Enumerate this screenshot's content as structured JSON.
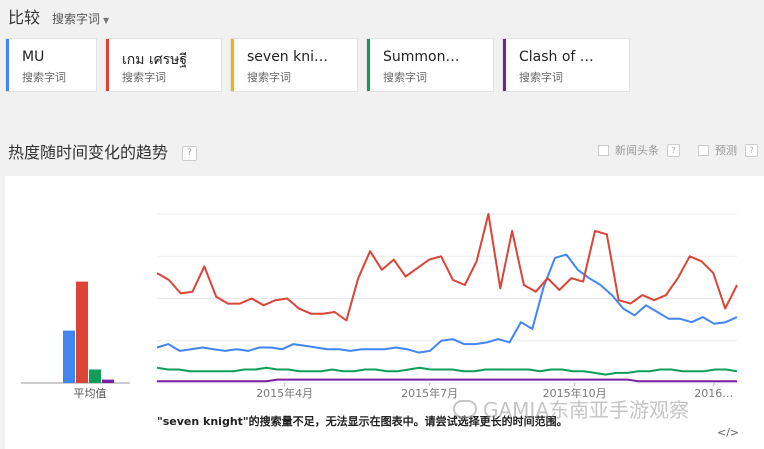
{
  "header": {
    "title": "比较",
    "dropdown_label": "搜索字词"
  },
  "terms": [
    {
      "name": "MU",
      "sub": "搜索字词",
      "color": "#4285f4"
    },
    {
      "name": "เกม เศรษฐี",
      "sub": "搜索字词",
      "color": "#db4437"
    },
    {
      "name": "seven kni…",
      "sub": "搜索字词",
      "color": "#f4b400"
    },
    {
      "name": "Summon…",
      "sub": "搜索字词",
      "color": "#0f9d58"
    },
    {
      "name": "Clash of …",
      "sub": "搜索字词",
      "color": "#7b1fa2"
    }
  ],
  "section": {
    "title": "热度随时间变化的趋势",
    "help": "?",
    "news_label": "新闻头条",
    "forecast_label": "预测"
  },
  "chart_data": {
    "type": "line",
    "average_label": "平均值",
    "averages": [
      {
        "series": "MU",
        "value": 31
      },
      {
        "series": "เกม เศรษฐี",
        "value": 60
      },
      {
        "series": "Summon…",
        "value": 8
      },
      {
        "series": "Clash of …",
        "value": 2
      }
    ],
    "x_tick_labels": [
      "2015年4月",
      "2015年7月",
      "2015年10月",
      "2016…"
    ],
    "ylim": [
      0,
      100
    ],
    "grid": true,
    "series": [
      {
        "name": "MU",
        "color": "#4285f4",
        "values": [
          21,
          23,
          19,
          20,
          21,
          20,
          19,
          20,
          19,
          21,
          21,
          20,
          23,
          22,
          21,
          20,
          20,
          19,
          20,
          20,
          20,
          21,
          20,
          18,
          19,
          25,
          26,
          23,
          23,
          24,
          26,
          24,
          36,
          32,
          57,
          74,
          76,
          67,
          62,
          58,
          52,
          44,
          40,
          46,
          42,
          38,
          38,
          36,
          39,
          35,
          36,
          39
        ]
      },
      {
        "name": "เกม เศรษฐี",
        "color": "#db4437",
        "values": [
          65,
          61,
          53,
          54,
          69,
          51,
          47,
          47,
          50,
          46,
          49,
          50,
          44,
          41,
          41,
          42,
          37,
          62,
          78,
          67,
          73,
          63,
          68,
          73,
          75,
          61,
          58,
          72,
          100,
          56,
          90,
          58,
          54,
          62,
          55,
          62,
          60,
          90,
          88,
          49,
          47,
          52,
          49,
          52,
          62,
          75,
          72,
          65,
          44,
          58
        ]
      },
      {
        "name": "Summon…",
        "color": "#0f9d58",
        "values": [
          9,
          8,
          8,
          7,
          7,
          7,
          7,
          7,
          8,
          8,
          9,
          8,
          8,
          7,
          7,
          7,
          8,
          7,
          7,
          8,
          8,
          7,
          7,
          8,
          9,
          8,
          8,
          8,
          7,
          7,
          8,
          8,
          8,
          8,
          8,
          7,
          8,
          8,
          7,
          7,
          6,
          5,
          6,
          6,
          7,
          7,
          8,
          8,
          7,
          7,
          7,
          8,
          8,
          7
        ]
      },
      {
        "name": "Clash of …",
        "color": "#7b1fa2",
        "values": [
          1,
          1,
          1,
          1,
          1,
          1,
          1,
          1,
          1,
          1,
          1,
          2,
          2,
          2,
          2,
          2,
          2,
          2,
          2,
          2,
          2,
          2,
          2,
          2,
          2,
          2,
          2,
          2,
          2,
          2,
          2,
          2,
          2,
          2,
          2,
          2,
          2,
          2,
          2,
          2,
          2,
          2,
          2,
          2,
          1,
          1,
          1,
          1,
          1,
          1,
          1,
          1,
          1,
          1
        ]
      }
    ],
    "note": "\"seven knight\"的搜索量不足，无法显示在图表中。请尝试选择更长的时间范围。"
  },
  "watermark": "GAMIA东南亚手游观察",
  "embed_label": "</>"
}
